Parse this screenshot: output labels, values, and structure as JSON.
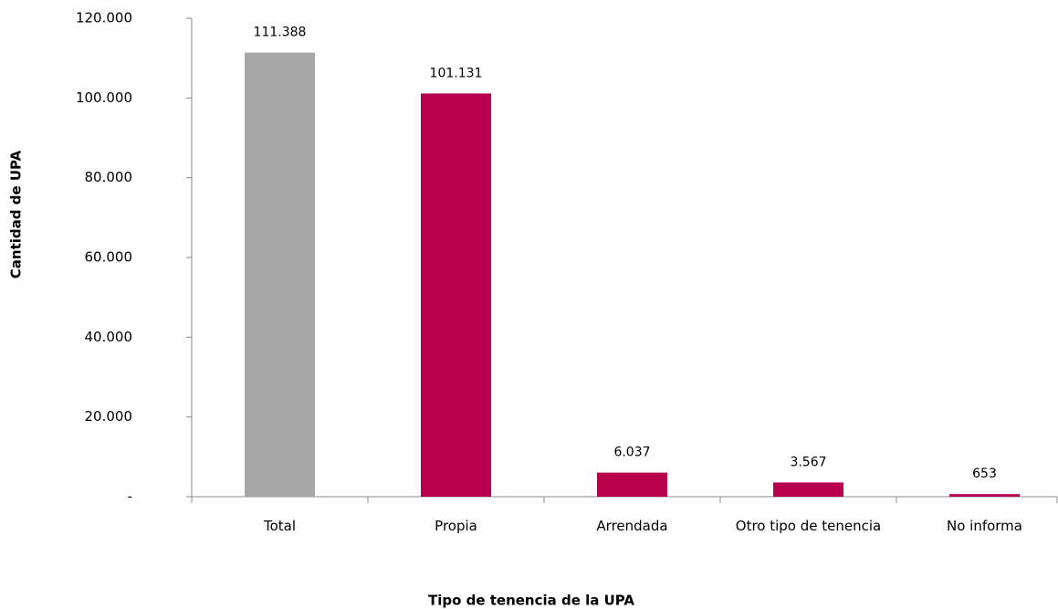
{
  "chart_data": {
    "type": "bar",
    "categories": [
      "Total",
      "Propia",
      "Arrendada",
      "Otro tipo de tenencia",
      "No informa"
    ],
    "values": [
      111388,
      101131,
      6037,
      3567,
      653
    ],
    "value_labels": [
      "111.388",
      "101.131",
      "6.037",
      "3.567",
      "653"
    ],
    "colors": [
      "#a6a6a6",
      "#b8004f",
      "#b8004f",
      "#b8004f",
      "#b8004f"
    ],
    "ylim": [
      0,
      120000
    ],
    "yticks": [
      {
        "value": 0,
        "label": "-"
      },
      {
        "value": 20000,
        "label": "20.000"
      },
      {
        "value": 40000,
        "label": "40.000"
      },
      {
        "value": 60000,
        "label": "60.000"
      },
      {
        "value": 80000,
        "label": "80.000"
      },
      {
        "value": 100000,
        "label": "100.000"
      },
      {
        "value": 120000,
        "label": "120.000"
      }
    ],
    "xlabel": "Tipo de tenencia de la UPA",
    "ylabel": "Cantidad de UPA"
  }
}
